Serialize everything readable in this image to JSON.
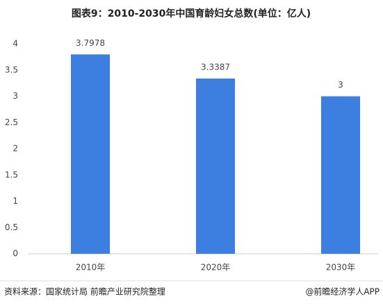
{
  "chart_data": {
    "type": "bar",
    "title": "图表9：2010-2030年中国育龄妇女总数(单位：亿人)",
    "categories": [
      "2010年",
      "2020年",
      "2030年"
    ],
    "values": [
      3.7978,
      3.3387,
      3
    ],
    "color": "#3d7fe0",
    "ylim": [
      0,
      4
    ],
    "yticks": [
      0,
      0.5,
      1,
      1.5,
      2,
      2.5,
      3,
      3.5,
      4
    ],
    "grid": false,
    "source": "资料来源：国家统计局 前瞻产业研究院整理",
    "credit": "@前瞻经济学人APP"
  }
}
